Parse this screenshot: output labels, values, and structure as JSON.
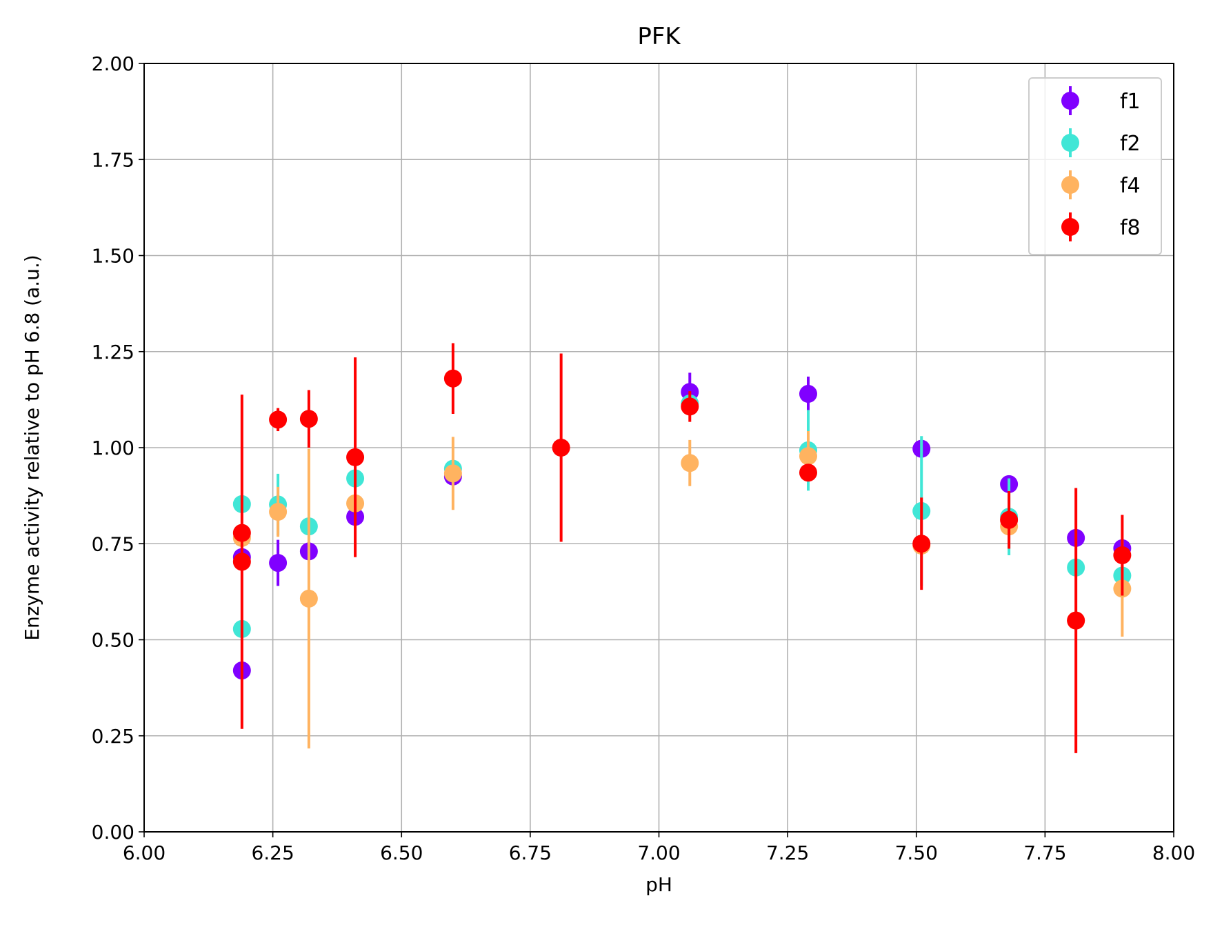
{
  "chart_data": {
    "type": "scatter",
    "title": "PFK",
    "xlabel": "pH",
    "ylabel": "Enzyme activity relative to pH 6.8 (a.u.)",
    "xlim": [
      6.0,
      8.0
    ],
    "ylim": [
      0.0,
      2.0
    ],
    "xticks": [
      "6.00",
      "6.25",
      "6.50",
      "6.75",
      "7.00",
      "7.25",
      "7.50",
      "7.75",
      "8.00"
    ],
    "yticks": [
      "0.00",
      "0.25",
      "0.50",
      "0.75",
      "1.00",
      "1.25",
      "1.50",
      "1.75",
      "2.00"
    ],
    "grid": true,
    "legend_position": "top-right",
    "error_bars": "vertical",
    "series": [
      {
        "name": "f1",
        "color": "#8000ff",
        "points": [
          {
            "x": 6.19,
            "y": 0.42,
            "err": 0.0
          },
          {
            "x": 6.19,
            "y": 0.715,
            "err": 0.0
          },
          {
            "x": 6.26,
            "y": 0.7,
            "err": 0.06
          },
          {
            "x": 6.32,
            "y": 0.73,
            "err": 0.0
          },
          {
            "x": 6.41,
            "y": 0.82,
            "err": 0.0
          },
          {
            "x": 6.6,
            "y": 0.925,
            "err": 0.0
          },
          {
            "x": 7.06,
            "y": 1.145,
            "err": 0.05
          },
          {
            "x": 7.29,
            "y": 1.14,
            "err": 0.045
          },
          {
            "x": 7.51,
            "y": 0.997,
            "err": 0.0
          },
          {
            "x": 7.68,
            "y": 0.905,
            "err": 0.0
          },
          {
            "x": 7.81,
            "y": 0.765,
            "err": 0.0
          },
          {
            "x": 7.9,
            "y": 0.738,
            "err": 0.0
          }
        ]
      },
      {
        "name": "f2",
        "color": "#40e6d6",
        "points": [
          {
            "x": 6.19,
            "y": 0.853,
            "err": 0.0
          },
          {
            "x": 6.19,
            "y": 0.528,
            "err": 0.0
          },
          {
            "x": 6.26,
            "y": 0.852,
            "err": 0.08
          },
          {
            "x": 6.32,
            "y": 0.795,
            "err": 0.0
          },
          {
            "x": 6.41,
            "y": 0.92,
            "err": 0.0
          },
          {
            "x": 6.6,
            "y": 0.945,
            "err": 0.0
          },
          {
            "x": 7.06,
            "y": 1.115,
            "err": 0.0
          },
          {
            "x": 7.29,
            "y": 0.993,
            "err": 0.105
          },
          {
            "x": 7.51,
            "y": 0.835,
            "err": 0.195
          },
          {
            "x": 7.68,
            "y": 0.82,
            "err": 0.1
          },
          {
            "x": 7.81,
            "y": 0.688,
            "err": 0.0
          },
          {
            "x": 7.9,
            "y": 0.667,
            "err": 0.0
          }
        ]
      },
      {
        "name": "f4",
        "color": "#ffb360",
        "points": [
          {
            "x": 6.19,
            "y": 0.765,
            "err": 0.0
          },
          {
            "x": 6.26,
            "y": 0.833,
            "err": 0.065
          },
          {
            "x": 6.32,
            "y": 0.607,
            "err": 0.39
          },
          {
            "x": 6.41,
            "y": 0.855,
            "err": 0.0
          },
          {
            "x": 6.6,
            "y": 0.933,
            "err": 0.095
          },
          {
            "x": 7.06,
            "y": 0.96,
            "err": 0.06
          },
          {
            "x": 7.29,
            "y": 0.978,
            "err": 0.065
          },
          {
            "x": 7.51,
            "y": 0.745,
            "err": 0.0
          },
          {
            "x": 7.68,
            "y": 0.795,
            "err": 0.0
          },
          {
            "x": 7.81,
            "y": 0.55,
            "err": 0.0
          },
          {
            "x": 7.9,
            "y": 0.633,
            "err": 0.125
          }
        ]
      },
      {
        "name": "f8",
        "color": "#ff0000",
        "points": [
          {
            "x": 6.19,
            "y": 0.703,
            "err": 0.435
          },
          {
            "x": 6.19,
            "y": 0.778,
            "err": 0.0
          },
          {
            "x": 6.26,
            "y": 1.073,
            "err": 0.03
          },
          {
            "x": 6.32,
            "y": 1.075,
            "err": 0.075
          },
          {
            "x": 6.41,
            "y": 0.975,
            "err": 0.26
          },
          {
            "x": 6.6,
            "y": 1.18,
            "err": 0.092
          },
          {
            "x": 6.81,
            "y": 1.0,
            "err": 0.245
          },
          {
            "x": 7.06,
            "y": 1.107,
            "err": 0.04
          },
          {
            "x": 7.29,
            "y": 0.935,
            "err": 0.0
          },
          {
            "x": 7.51,
            "y": 0.75,
            "err": 0.12
          },
          {
            "x": 7.68,
            "y": 0.812,
            "err": 0.075
          },
          {
            "x": 7.81,
            "y": 0.55,
            "err": 0.345
          },
          {
            "x": 7.9,
            "y": 0.72,
            "err": 0.105
          }
        ]
      }
    ]
  }
}
